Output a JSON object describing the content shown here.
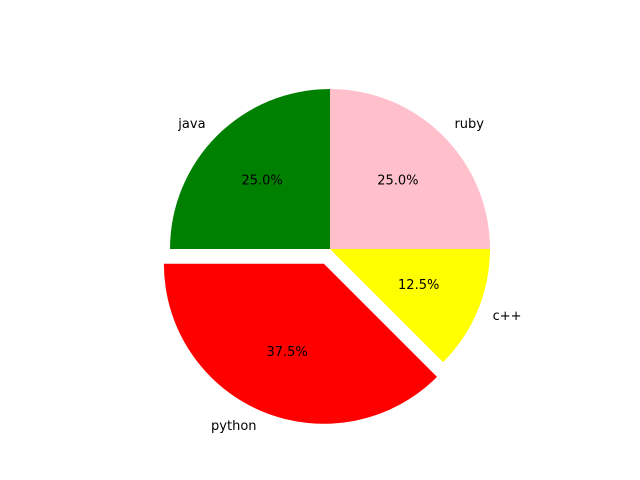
{
  "chart_data": {
    "type": "pie",
    "title": "",
    "categories": [
      "python",
      "c++",
      "ruby",
      "java"
    ],
    "values": [
      37.5,
      12.5,
      25.0,
      25.0
    ],
    "percent_labels": [
      "37.5%",
      "12.5%",
      "25.0%",
      "25.0%"
    ],
    "colors": [
      "#ff0000",
      "#ffff00",
      "#ffc0cb",
      "#008000"
    ],
    "explode": [
      0.1,
      0,
      0,
      0
    ],
    "start_angle": 180,
    "direction": "counterclockwise",
    "legend": "none",
    "grid": false
  }
}
